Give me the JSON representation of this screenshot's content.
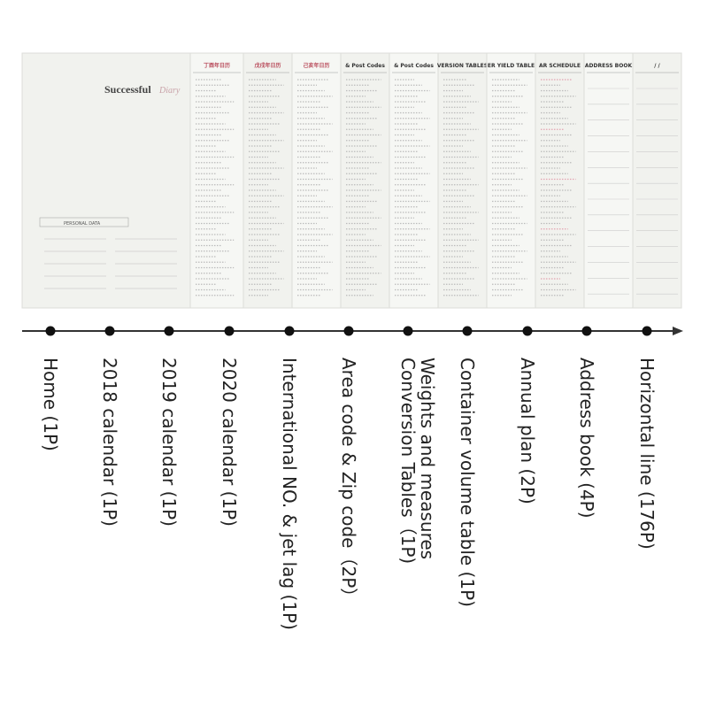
{
  "pages": [
    {
      "title": "Successful",
      "subtitle": "Diary",
      "section": "PERSONAL DATA"
    },
    {
      "title": "丁酉年日历"
    },
    {
      "title": "戊戌年日历"
    },
    {
      "title": "己亥年日历"
    },
    {
      "title": "& Post Codes"
    },
    {
      "title": "& Post Codes"
    },
    {
      "title": "VERSION TABLES"
    },
    {
      "title": "ER YIELD TABLE"
    },
    {
      "title": "AR SCHEDULE"
    },
    {
      "title": "ADDRESS BOOK"
    },
    {
      "title": "/ /"
    }
  ],
  "timeline": [
    {
      "lines": [
        "Home (1P)"
      ]
    },
    {
      "lines": [
        "2018 calendar (1P)"
      ]
    },
    {
      "lines": [
        "2019 calendar (1P)"
      ]
    },
    {
      "lines": [
        "2020 calendar (1P)"
      ]
    },
    {
      "lines": [
        "International NO. & jet lag (1P)"
      ]
    },
    {
      "lines": [
        "Area code & Zip code（2P）"
      ]
    },
    {
      "lines": [
        "Weights and measures",
        "Conversion Tables（1P)"
      ]
    },
    {
      "lines": [
        "Container volume table (1P)"
      ]
    },
    {
      "lines": [
        "Annual plan (2P)"
      ]
    },
    {
      "lines": [
        "Address book (4P)"
      ]
    },
    {
      "lines": [
        "Horizontal line (176P)"
      ]
    }
  ]
}
